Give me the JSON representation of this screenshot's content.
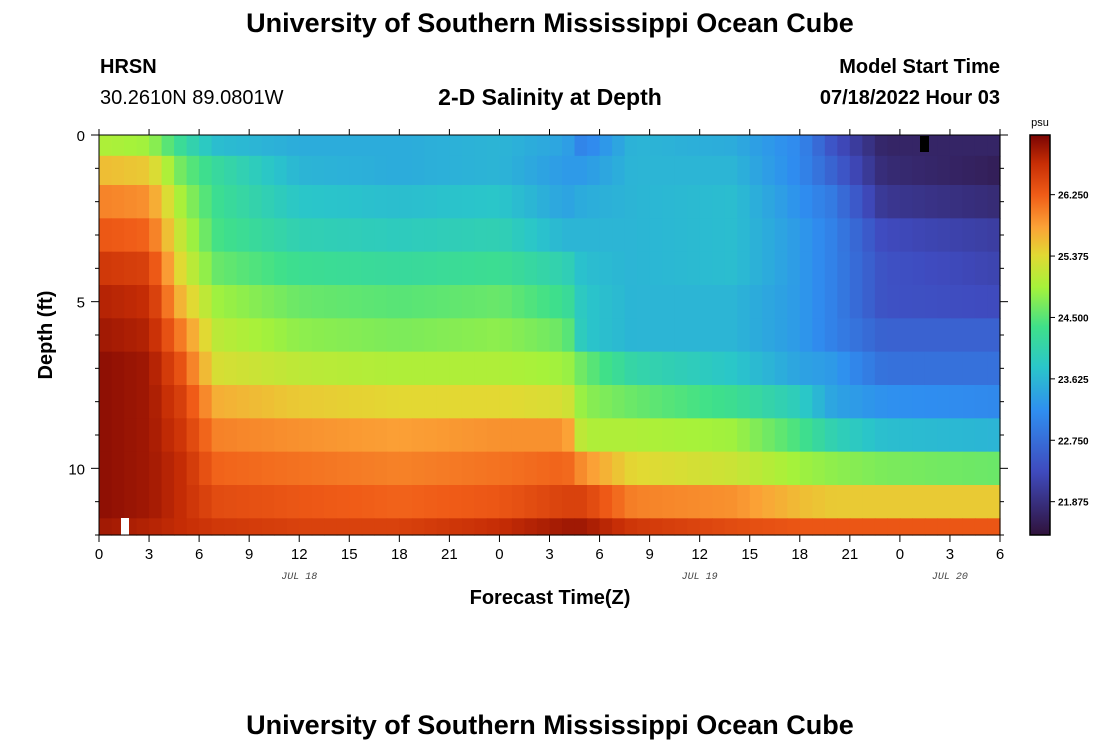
{
  "header": {
    "title": "University of Southern Mississippi Ocean Cube",
    "station": "HRSN",
    "coords": "30.2610N  89.0801W",
    "subtitle": "2-D Salinity at Depth",
    "model_label": "Model Start Time",
    "model_time": "07/18/2022 Hour 03",
    "footer_title": "University of Southern Mississippi Ocean Cube"
  },
  "chart_data": {
    "type": "heatmap",
    "title": "2-D Salinity at Depth",
    "xlabel": "Forecast Time(Z)",
    "ylabel": "Depth (ft)",
    "x_start_hour": 0,
    "x_end_hour": 54,
    "x_tick_labels": [
      "0",
      "3",
      "6",
      "9",
      "12",
      "15",
      "18",
      "21",
      "0",
      "3",
      "6",
      "9",
      "12",
      "15",
      "18",
      "21",
      "0",
      "3",
      "6"
    ],
    "date_labels": [
      {
        "label": "JUL 18",
        "hour": 12
      },
      {
        "label": "JUL 19",
        "hour": 36
      },
      {
        "label": "JUL 20",
        "hour": 51
      }
    ],
    "y_tick_labels": [
      "0",
      "5",
      "10"
    ],
    "ylim": [
      0,
      12
    ],
    "colorbar": {
      "unit": "psu",
      "vmin": 21.4,
      "vmax": 27.1,
      "tick_values": [
        21.875,
        22.75,
        23.625,
        24.5,
        25.375,
        26.25
      ],
      "tick_labels": [
        "21.875",
        "22.750",
        "23.625",
        "24.500",
        "25.375",
        "26.250"
      ]
    },
    "depth_layers_ft": [
      0.25,
      1,
      2,
      3,
      4,
      5,
      6,
      7,
      8,
      9,
      10,
      11,
      12
    ],
    "salinity_profile": [
      {
        "hour": 0,
        "psu": [
          25.0,
          25.6,
          26.0,
          26.3,
          26.6,
          26.8,
          26.9,
          27.0,
          27.0,
          27.0,
          27.0,
          27.0,
          26.9
        ]
      },
      {
        "hour": 3,
        "psu": [
          24.9,
          25.5,
          25.9,
          26.2,
          26.5,
          26.7,
          26.8,
          26.9,
          26.9,
          26.9,
          26.9,
          26.9,
          26.8
        ]
      },
      {
        "hour": 5,
        "psu": [
          24.2,
          24.6,
          24.9,
          25.1,
          25.3,
          25.6,
          26.0,
          26.3,
          26.5,
          26.6,
          26.7,
          26.7,
          26.7
        ]
      },
      {
        "hour": 7,
        "psu": [
          23.7,
          24.2,
          24.3,
          24.4,
          24.6,
          24.9,
          25.1,
          25.3,
          25.7,
          26.0,
          26.2,
          26.4,
          26.6
        ]
      },
      {
        "hour": 12,
        "psu": [
          23.5,
          23.6,
          23.8,
          24.0,
          24.3,
          24.6,
          24.8,
          25.1,
          25.5,
          25.9,
          26.1,
          26.3,
          26.5
        ]
      },
      {
        "hour": 18,
        "psu": [
          23.5,
          23.5,
          23.7,
          23.9,
          24.2,
          24.5,
          24.7,
          25.0,
          25.4,
          25.8,
          26.0,
          26.2,
          26.5
        ]
      },
      {
        "hour": 24,
        "psu": [
          23.6,
          23.6,
          23.8,
          24.0,
          24.3,
          24.6,
          24.8,
          25.0,
          25.4,
          25.9,
          26.1,
          26.3,
          26.7
        ]
      },
      {
        "hour": 28,
        "psu": [
          23.4,
          23.3,
          23.4,
          23.6,
          24.0,
          24.3,
          24.6,
          24.9,
          25.3,
          25.9,
          26.2,
          26.5,
          26.9
        ]
      },
      {
        "hour": 29,
        "psu": [
          23.0,
          23.3,
          23.5,
          23.6,
          23.7,
          23.8,
          23.8,
          24.6,
          24.8,
          25.0,
          25.9,
          26.5,
          26.9
        ]
      },
      {
        "hour": 32,
        "psu": [
          23.6,
          23.6,
          23.6,
          23.6,
          23.6,
          23.6,
          23.6,
          24.1,
          24.6,
          25.0,
          25.4,
          26.0,
          26.6
        ]
      },
      {
        "hour": 38,
        "psu": [
          23.5,
          23.6,
          23.7,
          23.7,
          23.7,
          23.6,
          23.6,
          23.8,
          24.3,
          24.9,
          25.2,
          25.9,
          26.4
        ]
      },
      {
        "hour": 42,
        "psu": [
          23.1,
          23.1,
          23.2,
          23.3,
          23.3,
          23.3,
          23.3,
          23.4,
          23.9,
          24.4,
          24.9,
          25.6,
          26.3
        ]
      },
      {
        "hour": 44,
        "psu": [
          22.4,
          22.6,
          22.9,
          23.0,
          23.0,
          23.0,
          23.0,
          23.3,
          23.4,
          24.0,
          24.8,
          25.5,
          26.3
        ]
      },
      {
        "hour": 47,
        "psu": [
          21.7,
          21.8,
          22.0,
          22.3,
          22.4,
          22.4,
          22.6,
          22.8,
          23.2,
          23.7,
          24.7,
          25.5,
          26.3
        ]
      },
      {
        "hour": 54,
        "psu": [
          21.7,
          21.6,
          21.8,
          22.1,
          22.2,
          22.3,
          22.6,
          22.8,
          23.1,
          23.6,
          24.6,
          25.5,
          26.3
        ]
      }
    ]
  }
}
